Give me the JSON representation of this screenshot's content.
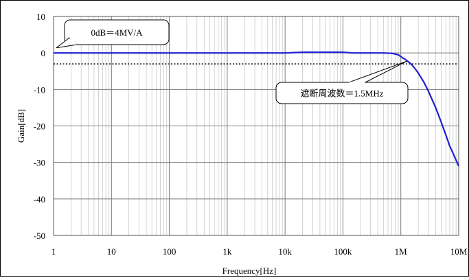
{
  "chart_data": {
    "type": "line",
    "xlabel": "Frequency[Hz]",
    "ylabel": "Gain[dB]",
    "x_scale": "log",
    "xlim": [
      1,
      10000000
    ],
    "ylim": [
      -50,
      10
    ],
    "grid": true,
    "x_ticks": [
      {
        "value": 1,
        "label": "1"
      },
      {
        "value": 10,
        "label": "10"
      },
      {
        "value": 100,
        "label": "100"
      },
      {
        "value": 1000,
        "label": "1k"
      },
      {
        "value": 10000,
        "label": "10k"
      },
      {
        "value": 100000,
        "label": "100k"
      },
      {
        "value": 1000000,
        "label": "1M"
      },
      {
        "value": 10000000,
        "label": "10M"
      }
    ],
    "y_ticks": [
      {
        "value": 10,
        "label": "10"
      },
      {
        "value": 0,
        "label": "0"
      },
      {
        "value": -10,
        "label": "-10"
      },
      {
        "value": -20,
        "label": "-20"
      },
      {
        "value": -30,
        "label": "-30"
      },
      {
        "value": -40,
        "label": "-40"
      },
      {
        "value": -50,
        "label": "-50"
      }
    ],
    "series": [
      {
        "color": "#1f1fd6",
        "x": [
          1,
          10,
          100,
          1000,
          10000,
          20000,
          100000,
          150000,
          500000,
          700000,
          900000,
          1000000,
          1200000,
          1500000,
          1800000,
          2000000,
          2500000,
          3000000,
          4000000,
          5000000,
          6000000,
          7000000,
          8000000,
          10000000
        ],
        "y": [
          0,
          0,
          0,
          0,
          0,
          0.2,
          0.2,
          0,
          0,
          -0.1,
          -0.5,
          -1.0,
          -1.8,
          -3.0,
          -4.5,
          -5.5,
          -8.0,
          -10.5,
          -15.0,
          -19.0,
          -22.5,
          -25.5,
          -27.5,
          -31.0
        ]
      }
    ],
    "reference_lines": [
      {
        "y": -3,
        "style": "dotted",
        "color": "#000000"
      }
    ],
    "annotations": [
      {
        "text": "0dB＝4MV/A",
        "point": [
          1,
          1.4
        ]
      },
      {
        "text": "遮断周波数＝1.5MHz",
        "point": [
          1500000,
          -3
        ]
      }
    ]
  }
}
